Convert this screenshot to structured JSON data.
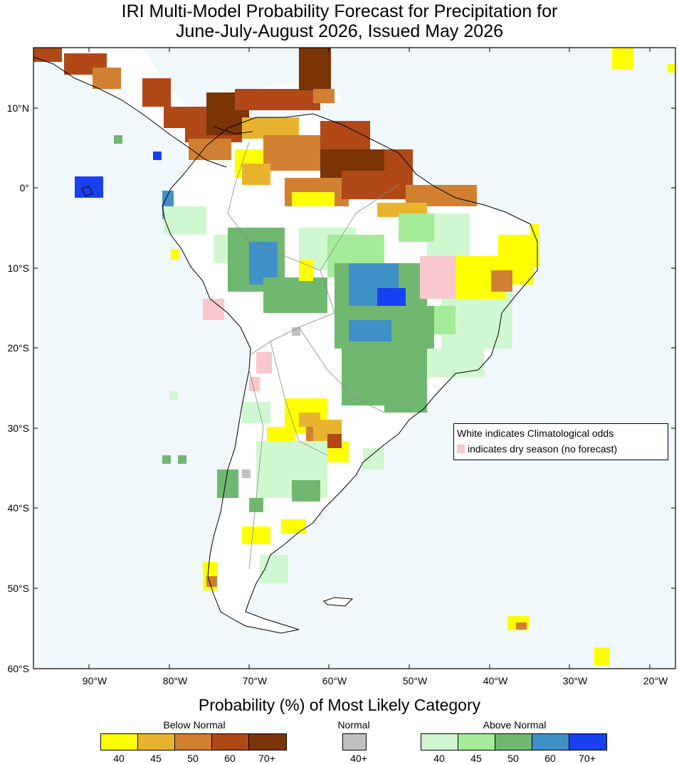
{
  "title": {
    "line1": "IRI Multi-Model Probability Forecast for Precipitation for",
    "line2": "June-July-August 2026, Issued May 2026"
  },
  "map": {
    "lon_labels": [
      "90°W",
      "80°W",
      "70°W",
      "60°W",
      "50°W",
      "40°W",
      "30°W",
      "20°W"
    ],
    "lat_labels": [
      "10°N",
      "0°",
      "10°S",
      "20°S",
      "30°S",
      "40°S",
      "50°S",
      "60°S"
    ],
    "ocean_color": "#f0f8fc",
    "land_color": "#ffffff"
  },
  "note": {
    "line1": "White indicates Climatological odds",
    "line2": "indicates dry season (no forecast)",
    "dry_color": "#f8c8cc"
  },
  "legend": {
    "caption": "Probability (%) of Most Likely Category",
    "below": {
      "label": "Below Normal",
      "colors": [
        "#ffff00",
        "#e8b430",
        "#d08030",
        "#b04818",
        "#7a3406"
      ],
      "ticks": [
        "40",
        "45",
        "50",
        "60",
        "70+"
      ]
    },
    "normal": {
      "label": "Normal",
      "colors": [
        "#c0c0c0"
      ],
      "ticks": [
        "40+"
      ]
    },
    "above": {
      "label": "Above Normal",
      "colors": [
        "#d0f8d0",
        "#a4ec98",
        "#70b870",
        "#4090c8",
        "#1840f0"
      ],
      "ticks": [
        "40",
        "45",
        "50",
        "60",
        "70+"
      ]
    }
  }
}
